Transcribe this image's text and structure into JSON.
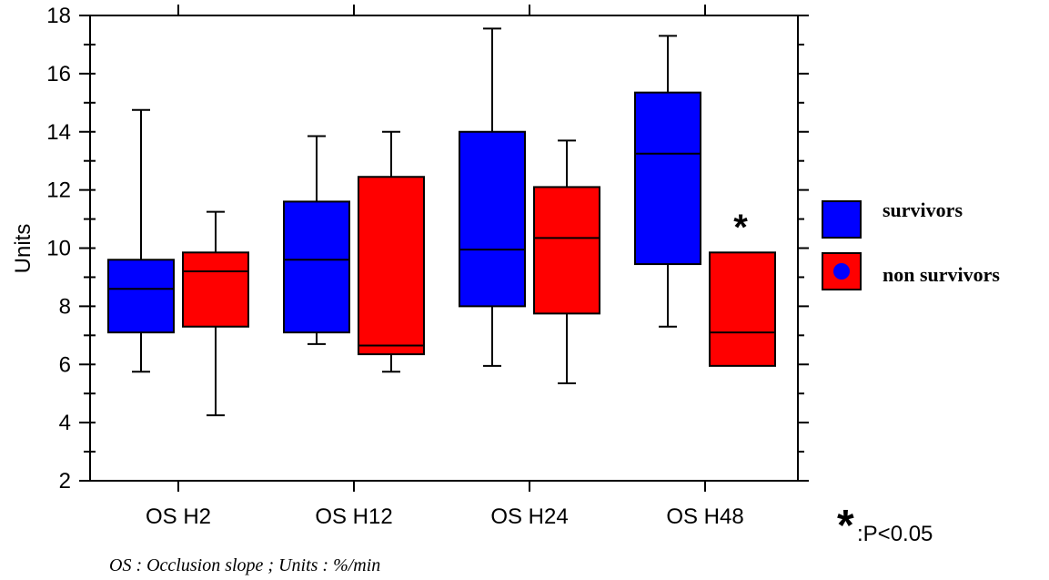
{
  "colors": {
    "survivors": "#0000ff",
    "non_survivors": "#ff0000",
    "dot": "#0000ff",
    "axis": "#000000"
  },
  "chart_data": {
    "type": "box",
    "title": "",
    "xlabel": "",
    "ylabel": "Units",
    "ylim": [
      2,
      18
    ],
    "yticks": [
      2,
      4,
      6,
      8,
      10,
      12,
      14,
      16,
      18
    ],
    "grid": false,
    "legend_position": "right",
    "categories": [
      "OS H2",
      "OS H12",
      "OS H24",
      "OS H48"
    ],
    "series": [
      {
        "name": "survivors",
        "boxes": [
          {
            "min": 5.75,
            "q1": 7.1,
            "median": 8.6,
            "q3": 9.6,
            "max": 14.75
          },
          {
            "min": 6.7,
            "q1": 7.1,
            "median": 9.6,
            "q3": 11.6,
            "max": 13.85
          },
          {
            "min": 5.95,
            "q1": 8.0,
            "median": 9.95,
            "q3": 14.0,
            "max": 17.55
          },
          {
            "min": 7.3,
            "q1": 9.45,
            "median": 13.25,
            "q3": 15.35,
            "max": 17.3
          }
        ]
      },
      {
        "name": "non survivors",
        "boxes": [
          {
            "min": 4.25,
            "q1": 7.3,
            "median": 9.2,
            "q3": 9.85,
            "max": 11.25
          },
          {
            "min": 5.75,
            "q1": 6.35,
            "median": 6.65,
            "q3": 12.45,
            "max": 14.0
          },
          {
            "min": 5.35,
            "q1": 7.75,
            "median": 10.35,
            "q3": 12.1,
            "max": 13.7
          },
          {
            "min": 5.95,
            "q1": 5.95,
            "median": 7.1,
            "q3": 9.85,
            "max": 9.85
          }
        ]
      }
    ],
    "annotations": {
      "significance_marker": "*",
      "significance_category": "OS H48",
      "significance_note": ":P<0.05",
      "caption": "OS : Occlusion slope ; Units : %/min"
    }
  }
}
